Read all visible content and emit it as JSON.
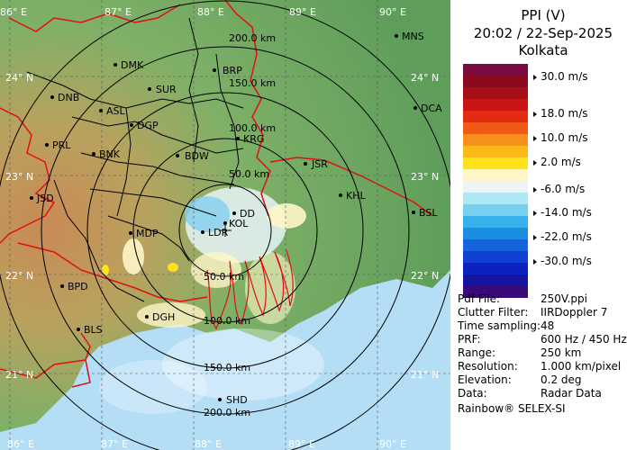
{
  "title": {
    "product": "PPI (V)",
    "datetime": "20:02 / 22-Sep-2025",
    "station": "Kolkata"
  },
  "legend": {
    "colors": [
      "#7a0a40",
      "#8b0a1e",
      "#a50f15",
      "#c81414",
      "#e52a14",
      "#f05a14",
      "#f7911e",
      "#fcb917",
      "#ffe21c",
      "#fff6c8",
      "#eef3f6",
      "#aee8f5",
      "#78d0f0",
      "#38b0ec",
      "#1a8fe0",
      "#1464dc",
      "#1040d2",
      "#0c22c0",
      "#1414a0",
      "#3a0a78"
    ],
    "labels": [
      "30.0 m/s",
      "18.0 m/s",
      "10.0 m/s",
      "2.0 m/s",
      "-6.0 m/s",
      "-14.0 m/s",
      "-22.0 m/s",
      "-30.0 m/s"
    ]
  },
  "metadata": [
    {
      "key": "Pdf File:",
      "value": "250V.ppi"
    },
    {
      "key": "Clutter Filter:",
      "value": "IIRDoppler 7"
    },
    {
      "key": "Time sampling:",
      "value": "48"
    },
    {
      "key": "PRF:",
      "value": "600 Hz / 450 Hz"
    },
    {
      "key": "Range:",
      "value": "250 km"
    },
    {
      "key": "Resolution:",
      "value": "1.000 km/pixel"
    },
    {
      "key": "Elevation:",
      "value": "0.2 deg"
    },
    {
      "key": "Data:",
      "value": "Radar Data"
    }
  ],
  "footer": "Rainbow® SELEX-SI",
  "longitude_labels": [
    "86° E",
    "87° E",
    "88° E",
    "89° E",
    "90° E"
  ],
  "latitude_labels": [
    "24° N",
    "23° N",
    "22° N",
    "21° N"
  ],
  "range_labels": [
    "50.0 km",
    "100.0 km",
    "150.0 km",
    "200.0 km"
  ],
  "cities": [
    "MNS",
    "DMK",
    "BRP",
    "DNB",
    "SUR",
    "ASL",
    "DGP",
    "DCA",
    "PRL",
    "BNK",
    "KRG",
    "BDW",
    "JSR",
    "JSD",
    "KHL",
    "DD",
    "KOL",
    "BSL",
    "MDP",
    "LDR",
    "BPD",
    "DGH",
    "BLS",
    "SHD"
  ],
  "colors": {
    "sea": "#b4ddf6",
    "land": "#6fa862",
    "border": "#e01010",
    "district": "#000000",
    "rings": "#000000"
  }
}
